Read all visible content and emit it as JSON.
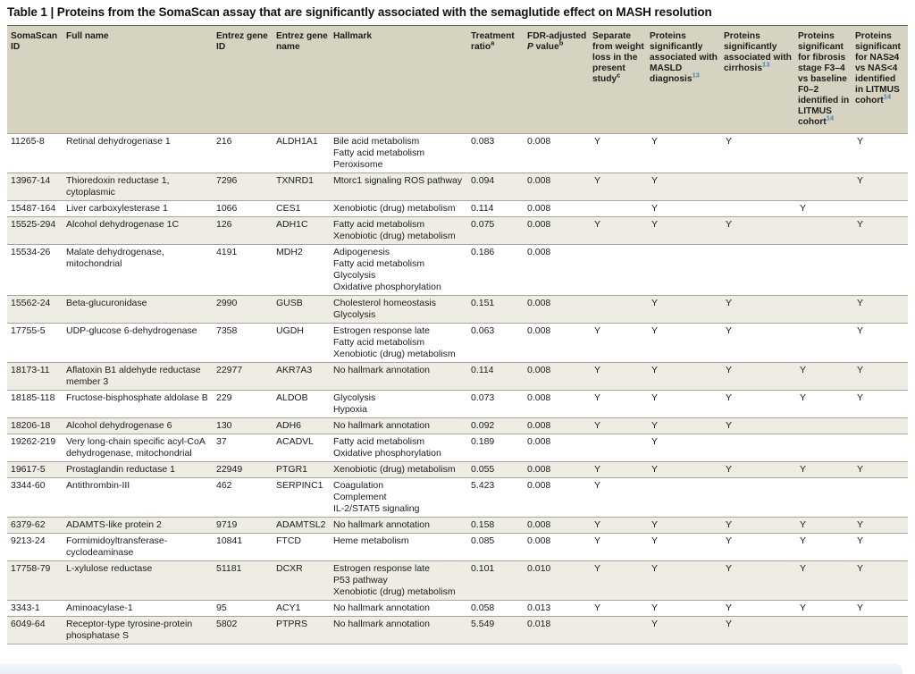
{
  "title": "Table 1 | Proteins from the SomaScan assay that are significantly associated with the semaglutide effect on MASH resolution",
  "colors": {
    "header_bg": "#d7d3c1",
    "row_alt_bg": "#efece3",
    "row_bg": "#ffffff",
    "border_strong": "#63635c",
    "border_light": "#a6a69d",
    "text": "#1c1c1c",
    "ref_blue": "#4280b8",
    "bottom_band": "#e9eff4"
  },
  "table": {
    "columns": [
      {
        "segments": [
          {
            "t": "SomaScan ID"
          }
        ]
      },
      {
        "segments": [
          {
            "t": "Full name"
          }
        ]
      },
      {
        "segments": [
          {
            "t": "Entrez gene ID"
          }
        ]
      },
      {
        "segments": [
          {
            "t": "Entrez gene name"
          }
        ]
      },
      {
        "segments": [
          {
            "t": "Hallmark"
          }
        ]
      },
      {
        "segments": [
          {
            "t": "Treatment ratio"
          },
          {
            "t": "a",
            "sup": true
          }
        ]
      },
      {
        "segments": [
          {
            "t": "FDR-adjusted "
          },
          {
            "t": "P",
            "italic": true
          },
          {
            "t": " value"
          },
          {
            "t": "b",
            "sup": true
          }
        ]
      },
      {
        "segments": [
          {
            "t": "Separate from weight loss in the present study"
          },
          {
            "t": "c",
            "sup": true
          }
        ]
      },
      {
        "segments": [
          {
            "t": "Proteins significantly associated with MASLD diagnosis"
          },
          {
            "t": "13",
            "sup": true,
            "ref": true
          }
        ]
      },
      {
        "segments": [
          {
            "t": "Proteins significantly associated with cirrhosis"
          },
          {
            "t": "13",
            "sup": true,
            "ref": true
          }
        ]
      },
      {
        "segments": [
          {
            "t": "Proteins significant for fibrosis stage F3–4 vs baseline F0–2 identified in LITMUS cohort"
          },
          {
            "t": "14",
            "sup": true,
            "ref": true
          }
        ]
      },
      {
        "segments": [
          {
            "t": "Proteins significant for NAS≥4 vs NAS<4 identified in LITMUS cohort"
          },
          {
            "t": "14",
            "sup": true,
            "ref": true
          }
        ]
      }
    ],
    "rows": [
      {
        "somascan_id": "11265-8",
        "full_name": "Retinal dehydrogenase 1",
        "entrez_gene_id": "216",
        "entrez_gene_name": "ALDH1A1",
        "hallmark": [
          "Bile acid metabolism",
          "Fatty acid metabolism",
          "Peroxisome"
        ],
        "treatment_ratio": "0.083",
        "fdr_adjusted_p": "0.008",
        "flags": [
          "Y",
          "Y",
          "Y",
          "",
          "Y"
        ]
      },
      {
        "somascan_id": "13967-14",
        "full_name": "Thioredoxin reductase 1, cytoplasmic",
        "entrez_gene_id": "7296",
        "entrez_gene_name": "TXNRD1",
        "hallmark": [
          "Mtorc1 signaling ROS pathway"
        ],
        "treatment_ratio": "0.094",
        "fdr_adjusted_p": "0.008",
        "flags": [
          "Y",
          "Y",
          "",
          "",
          "Y"
        ]
      },
      {
        "somascan_id": "15487-164",
        "full_name": "Liver carboxylesterase 1",
        "entrez_gene_id": "1066",
        "entrez_gene_name": "CES1",
        "hallmark": [
          "Xenobiotic (drug) metabolism"
        ],
        "treatment_ratio": "0.114",
        "fdr_adjusted_p": "0.008",
        "flags": [
          "",
          "Y",
          "",
          "Y",
          ""
        ]
      },
      {
        "somascan_id": "15525-294",
        "full_name": "Alcohol dehydrogenase 1C",
        "entrez_gene_id": "126",
        "entrez_gene_name": "ADH1C",
        "hallmark": [
          "Fatty acid metabolism",
          "Xenobiotic (drug) metabolism"
        ],
        "treatment_ratio": "0.075",
        "fdr_adjusted_p": "0.008",
        "flags": [
          "Y",
          "Y",
          "Y",
          "",
          "Y"
        ]
      },
      {
        "somascan_id": "15534-26",
        "full_name": "Malate dehydrogenase, mitochondrial",
        "entrez_gene_id": "4191",
        "entrez_gene_name": "MDH2",
        "hallmark": [
          "Adipogenesis",
          "Fatty acid metabolism",
          "Glycolysis",
          "Oxidative phosphorylation"
        ],
        "treatment_ratio": "0.186",
        "fdr_adjusted_p": "0.008",
        "flags": [
          "",
          "",
          "",
          "",
          ""
        ]
      },
      {
        "somascan_id": "15562-24",
        "full_name": "Beta-glucuronidase",
        "entrez_gene_id": "2990",
        "entrez_gene_name": "GUSB",
        "hallmark": [
          "Cholesterol homeostasis",
          "Glycolysis"
        ],
        "treatment_ratio": "0.151",
        "fdr_adjusted_p": "0.008",
        "flags": [
          "",
          "Y",
          "Y",
          "",
          "Y"
        ]
      },
      {
        "somascan_id": "17755-5",
        "full_name": "UDP-glucose 6-dehydrogenase",
        "entrez_gene_id": "7358",
        "entrez_gene_name": "UGDH",
        "hallmark": [
          "Estrogen response late",
          "Fatty acid metabolism",
          "Xenobiotic (drug) metabolism"
        ],
        "treatment_ratio": "0.063",
        "fdr_adjusted_p": "0.008",
        "flags": [
          "Y",
          "Y",
          "Y",
          "",
          "Y"
        ]
      },
      {
        "somascan_id": "18173-11",
        "full_name": "Aflatoxin B1 aldehyde reductase member 3",
        "entrez_gene_id": "22977",
        "entrez_gene_name": "AKR7A3",
        "hallmark": [
          "No hallmark annotation"
        ],
        "treatment_ratio": "0.114",
        "fdr_adjusted_p": "0.008",
        "flags": [
          "Y",
          "Y",
          "Y",
          "Y",
          "Y"
        ]
      },
      {
        "somascan_id": "18185-118",
        "full_name": "Fructose-bisphosphate aldolase B",
        "entrez_gene_id": "229",
        "entrez_gene_name": "ALDOB",
        "hallmark": [
          "Glycolysis",
          "Hypoxia"
        ],
        "treatment_ratio": "0.073",
        "fdr_adjusted_p": "0.008",
        "flags": [
          "Y",
          "Y",
          "Y",
          "Y",
          "Y"
        ]
      },
      {
        "somascan_id": "18206-18",
        "full_name": "Alcohol dehydrogenase 6",
        "entrez_gene_id": "130",
        "entrez_gene_name": "ADH6",
        "hallmark": [
          "No hallmark annotation"
        ],
        "treatment_ratio": "0.092",
        "fdr_adjusted_p": "0.008",
        "flags": [
          "Y",
          "Y",
          "Y",
          "",
          ""
        ]
      },
      {
        "somascan_id": "19262-219",
        "full_name": "Very long-chain specific acyl-CoA dehydrogenase, mitochondrial",
        "entrez_gene_id": "37",
        "entrez_gene_name": "ACADVL",
        "hallmark": [
          "Fatty acid metabolism",
          "Oxidative phosphorylation"
        ],
        "treatment_ratio": "0.189",
        "fdr_adjusted_p": "0.008",
        "flags": [
          "",
          "Y",
          "",
          "",
          ""
        ]
      },
      {
        "somascan_id": "19617-5",
        "full_name": "Prostaglandin reductase 1",
        "entrez_gene_id": "22949",
        "entrez_gene_name": "PTGR1",
        "hallmark": [
          "Xenobiotic (drug) metabolism"
        ],
        "treatment_ratio": "0.055",
        "fdr_adjusted_p": "0.008",
        "flags": [
          "Y",
          "Y",
          "Y",
          "Y",
          "Y"
        ]
      },
      {
        "somascan_id": "3344-60",
        "full_name": "Antithrombin-III",
        "entrez_gene_id": "462",
        "entrez_gene_name": "SERPINC1",
        "hallmark": [
          "Coagulation",
          "Complement",
          "IL-2/STAT5 signaling"
        ],
        "treatment_ratio": "5.423",
        "fdr_adjusted_p": "0.008",
        "flags": [
          "Y",
          "",
          "",
          "",
          ""
        ]
      },
      {
        "somascan_id": "6379-62",
        "full_name": "ADAMTS-like protein 2",
        "entrez_gene_id": "9719",
        "entrez_gene_name": "ADAMTSL2",
        "hallmark": [
          "No hallmark annotation"
        ],
        "treatment_ratio": "0.158",
        "fdr_adjusted_p": "0.008",
        "flags": [
          "Y",
          "Y",
          "Y",
          "Y",
          "Y"
        ]
      },
      {
        "somascan_id": "9213-24",
        "full_name": "Formimidoyltransferase-cyclodeaminase",
        "entrez_gene_id": "10841",
        "entrez_gene_name": "FTCD",
        "hallmark": [
          "Heme metabolism"
        ],
        "treatment_ratio": "0.085",
        "fdr_adjusted_p": "0.008",
        "flags": [
          "Y",
          "Y",
          "Y",
          "Y",
          "Y"
        ]
      },
      {
        "somascan_id": "17758-79",
        "full_name": "L-xylulose reductase",
        "entrez_gene_id": "51181",
        "entrez_gene_name": "DCXR",
        "hallmark": [
          "Estrogen response late",
          "P53 pathway",
          "Xenobiotic (drug) metabolism"
        ],
        "treatment_ratio": "0.101",
        "fdr_adjusted_p": "0.010",
        "flags": [
          "Y",
          "Y",
          "Y",
          "Y",
          "Y"
        ]
      },
      {
        "somascan_id": "3343-1",
        "full_name": "Aminoacylase-1",
        "entrez_gene_id": "95",
        "entrez_gene_name": "ACY1",
        "hallmark": [
          "No hallmark annotation"
        ],
        "treatment_ratio": "0.058",
        "fdr_adjusted_p": "0.013",
        "flags": [
          "Y",
          "Y",
          "Y",
          "Y",
          "Y"
        ]
      },
      {
        "somascan_id": "6049-64",
        "full_name": "Receptor-type tyrosine-protein phosphatase S",
        "entrez_gene_id": "5802",
        "entrez_gene_name": "PTPRS",
        "hallmark": [
          "No hallmark annotation"
        ],
        "treatment_ratio": "5.549",
        "fdr_adjusted_p": "0.018",
        "flags": [
          "",
          "Y",
          "Y",
          "",
          ""
        ]
      }
    ]
  }
}
